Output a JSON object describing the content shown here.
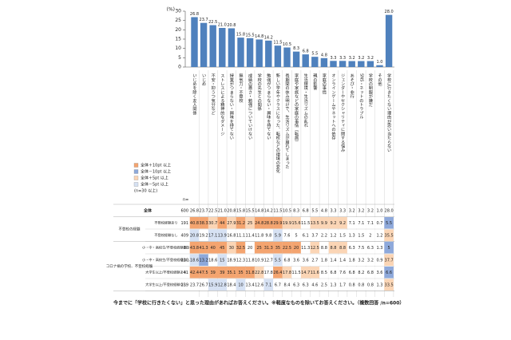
{
  "chart_data": {
    "type": "bar",
    "y_label": "(%)",
    "ylim": [
      0,
      30
    ],
    "yticks": [
      0,
      5,
      10,
      15,
      20,
      25,
      30
    ],
    "color": "#4f81bd",
    "categories": [
      "いじめを除く友人関係",
      "いじめ",
      "不安・抑うつ気分など",
      "ストレスによる精神的なダメージ",
      "授業がつまらない・興味を持てない",
      "無気力・不登校",
      "成績の悪さ・勉強についていけない",
      "学校の先生との関係",
      "勉強がつまらない・興味を持てない",
      "新しい学年やクラスになった、転校などの環境の変化",
      "長期間の休み明けで、生活リズムが崩れてしまった",
      "家庭や家族などの家庭の事情（転居）",
      "生活環境・生活リズムの乱れ",
      "親の影響",
      "家庭の事情",
      "オンラインゲームやネットへの依存",
      "ジェンダーやセクシャリティに関する悩み",
      "あそび・非行",
      "SNS・ネットのトラブル",
      "学校の制服が嫌だ",
      "その他",
      "学校に行きたくない理由が思い当たらない"
    ],
    "values": [
      26.8,
      23.7,
      22.5,
      21.0,
      20.8,
      15.8,
      15.5,
      14.8,
      14.2,
      11.5,
      10.5,
      8.3,
      6.8,
      5.5,
      4.8,
      3.3,
      3.3,
      3.2,
      3.2,
      3.2,
      1.0,
      28.0
    ],
    "value_labels": [
      "26.8",
      "23.7",
      "22.5",
      "21.0",
      "20.8",
      "15.8",
      "15.5",
      "14.8",
      "14.2",
      "11.5",
      "10.5",
      "8.3",
      "6.8",
      "5.5",
      "4.8",
      "3.3",
      "3.3",
      "3.2",
      "3.2",
      "3.2",
      "1.0",
      "28.0"
    ],
    "legend": [
      {
        "label": "全体＋10pt 以上",
        "color": "#f4a46f",
        "min": 10
      },
      {
        "label": "全体－10pt 以上",
        "color": "#8ea9db",
        "max": -10
      },
      {
        "label": "全体＋5pt 以上",
        "color": "#fbd5b5",
        "min": 5
      },
      {
        "label": "全体－5pt 以上",
        "color": "#d6e1f3",
        "max": -5
      }
    ],
    "legend_note": "(n=30 以上)",
    "n_header": "n=",
    "table": {
      "total": {
        "label": "全体",
        "n": 600
      },
      "groups": [
        {
          "label": "不登校の経験",
          "rows": [
            {
              "label": "不登校経験あり",
              "n": 191,
              "values": [
                40.8,
                38.3,
                30.7,
                44.0,
                27.9,
                31.2,
                25.0,
                24.8,
                28.8,
                29.9,
                19.9,
                15.6,
                11.5,
                13.5,
                9.9,
                9.2,
                9.2,
                7.1,
                7.1,
                7.1,
                0.7,
                5.5
              ]
            },
            {
              "label": "不登校経験なし",
              "n": 409,
              "values": [
                20.8,
                19.2,
                17.1,
                13.9,
                16.8,
                11.1,
                11.4,
                11.8,
                9.8,
                5.9,
                7.6,
                5.0,
                6.1,
                3.7,
                2.2,
                1.2,
                1.5,
                1.3,
                1.5,
                2.0,
                1.2,
                35.5
              ]
            }
          ]
        },
        {
          "label": "コロナ禍の学校、不登校経験",
          "rows": [
            {
              "label": "小・中・高校生/不登校経験あり",
              "n": 80,
              "values": [
                43.8,
                41.3,
                40.0,
                45.0,
                30.0,
                32.5,
                20.0,
                25.0,
                31.3,
                35.0,
                22.5,
                20.0,
                11.3,
                12.5,
                8.8,
                8.8,
                8.8,
                6.3,
                7.5,
                6.3,
                1.3,
                5.0
              ]
            },
            {
              "label": "小・中・高校生/不登校経験なし",
              "n": 220,
              "values": [
                18.6,
                13.2,
                18.6,
                15.0,
                18.9,
                12.3,
                11.8,
                10.9,
                12.7,
                5.5,
                6.8,
                3.6,
                3.6,
                2.7,
                1.8,
                1.4,
                1.4,
                1.8,
                3.2,
                3.2,
                0.9,
                37.7
              ]
            },
            {
              "label": "大学生以上/不登校経験あり",
              "n": 41,
              "values": [
                42.4,
                47.5,
                39.0,
                39.0,
                35.1,
                35.0,
                31.8,
                22.8,
                17.8,
                26.4,
                17.8,
                11.5,
                14.7,
                11.6,
                8.5,
                6.8,
                7.6,
                6.8,
                8.2,
                6.8,
                3.6,
                6.6
              ]
            },
            {
              "label": "大学生以上/不登校経験なし",
              "n": 239,
              "values": [
                23.7,
                26.7,
                15.9,
                12.8,
                18.4,
                10.0,
                13.4,
                12.6,
                7.1,
                6.7,
                8.4,
                6.3,
                6.3,
                4.6,
                2.5,
                1.3,
                1.7,
                0.8,
                0.8,
                0.8,
                1.3,
                33.5
              ]
            }
          ]
        }
      ]
    },
    "footer": "今までに「学校に行きたくない」と思った理由があればお答えください。",
    "footnote": "※軽度なものを除いてお答えください。（複数回答 /n=600）"
  }
}
